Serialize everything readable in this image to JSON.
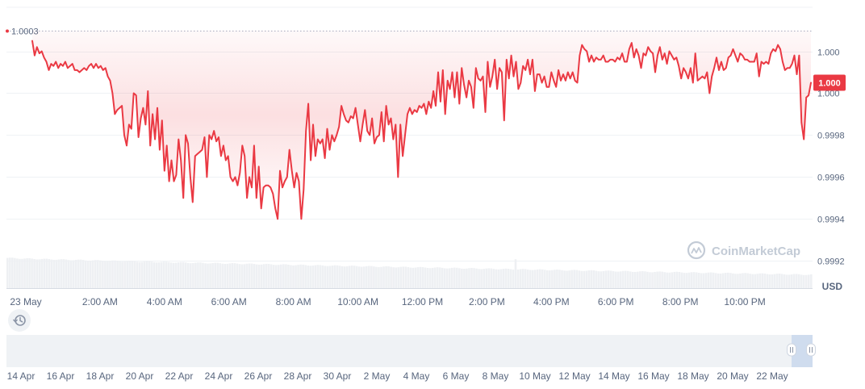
{
  "watermark": "CoinMarketCap",
  "currency_label": "USD",
  "open_price_label": "1.0003",
  "current_price_label": "1.000",
  "history_icon": "history-icon",
  "colors": {
    "line": "#ea3943",
    "price_tag_bg": "#ea3943",
    "grid": "#eff2f5",
    "axis_text": "#58667e",
    "volume": "#eef0f3",
    "navigator_bg": "#eff2f5",
    "navigator_selection": "#cfdcee",
    "watermark": "#c3cbd6"
  },
  "chart_data": {
    "type": "area",
    "title": "",
    "ylabel": "USD",
    "ylim": [
      0.99907,
      1.00041
    ],
    "y_ticks": [
      "1.000",
      "1.000",
      "0.9998",
      "0.9996",
      "0.9994",
      "0.9992"
    ],
    "y_tick_values": [
      1.0002,
      1.0,
      0.9998,
      0.9996,
      0.9994,
      0.9992
    ],
    "x_ticks": [
      "23 May",
      "2:00 AM",
      "4:00 AM",
      "6:00 AM",
      "8:00 AM",
      "10:00 AM",
      "12:00 PM",
      "2:00 PM",
      "4:00 PM",
      "6:00 PM",
      "8:00 PM",
      "10:00 PM"
    ],
    "x_tick_hours": [
      0.6,
      2.9,
      4.9,
      6.9,
      8.9,
      10.9,
      12.9,
      14.9,
      16.9,
      18.9,
      20.9,
      22.9
    ],
    "x_range_hours": [
      0,
      25
    ],
    "reference_line": 1.0003,
    "series": [
      {
        "values": [
          1.00025,
          1.00018,
          1.00022,
          1.00019,
          1.0002,
          1.00017,
          1.00015,
          1.00011,
          1.00014,
          1.00013,
          1.00015,
          1.00012,
          1.00014,
          1.00013,
          1.00015,
          1.00012,
          1.00013,
          1.00014,
          1.00011,
          1.00011,
          1.0001,
          1.00011,
          1.00012,
          1.00011,
          1.00013,
          1.00014,
          1.00012,
          1.00014,
          1.00012,
          1.00013,
          1.00011,
          1.00012,
          1.00008,
          1.00006,
          1.0,
          0.9999,
          0.99992,
          0.99993,
          0.99994,
          0.9998,
          0.99975,
          0.99985,
          0.99983,
          1.0,
          0.99999,
          0.99979,
          0.99988,
          0.99993,
          0.99985,
          1.00001,
          0.99975,
          0.9999,
          0.99978,
          0.99993,
          0.99973,
          0.99987,
          0.99963,
          0.99975,
          0.99958,
          0.99968,
          0.99958,
          0.99961,
          0.99978,
          0.99968,
          0.9995,
          0.9998,
          0.99976,
          0.9996,
          0.99948,
          0.9997,
          0.99971,
          0.99972,
          0.99973,
          0.99979,
          0.9996,
          0.9998,
          0.99978,
          0.99982,
          0.99977,
          0.99979,
          0.9997,
          0.99975,
          0.99968,
          0.9997,
          0.9996,
          0.99958,
          0.9996,
          0.99956,
          0.99962,
          0.99975,
          0.9997,
          0.9995,
          0.9996,
          0.99955,
          0.99975,
          0.9995,
          0.99965,
          0.99945,
          0.99955,
          0.99956,
          0.99956,
          0.99955,
          0.99952,
          0.99945,
          0.9994,
          0.99963,
          0.99955,
          0.99958,
          0.9996,
          0.99973,
          0.99963,
          0.99955,
          0.99962,
          0.99958,
          0.9994,
          0.99954,
          0.99982,
          0.99995,
          0.99968,
          0.99985,
          0.9997,
          0.99978,
          0.99976,
          0.99978,
          0.99969,
          0.99983,
          0.99973,
          0.9998,
          0.99977,
          0.9998,
          0.99984,
          0.99994,
          0.9999,
          0.99987,
          0.99986,
          0.99989,
          0.99988,
          0.99993,
          0.99985,
          0.99977,
          0.99985,
          0.99992,
          0.99982,
          0.9998,
          0.99988,
          0.99976,
          0.99979,
          0.9998,
          0.99991,
          0.99977,
          0.99994,
          0.99985,
          0.99988,
          0.99978,
          0.99985,
          0.9996,
          0.99985,
          0.9997,
          0.9998,
          0.9999,
          0.99993,
          0.9999,
          0.99992,
          0.99991,
          0.99994,
          0.99993,
          0.99995,
          0.9999,
          0.99996,
          0.99993,
          1.00001,
          0.99994,
          1.0001,
          0.99996,
          1.00011,
          0.9999,
          1.00006,
          1.00002,
          1.0001,
          0.99998,
          1.0001,
          0.99995,
          1.00012,
          1.00004,
          0.99998,
          1.00006,
          1.00003,
          0.99993,
          1.00012,
          1.00007,
          1.00006,
          1.00008,
          0.99991,
          1.00015,
          1.00003,
          1.00008,
          1.00016,
          1.00002,
          1.00012,
          1.0001,
          0.99987,
          1.00016,
          1.00007,
          1.00018,
          1.00008,
          1.00015,
          1.00002,
          1.00005,
          1.00013,
          1.00011,
          1.00016,
          1.00009,
          1.00016,
          1.00001,
          1.00009,
          1.00009,
          1.00005,
          1.00008,
          1.00003,
          1.00003,
          1.0001,
          1.00006,
          1.00003,
          1.00011,
          1.00006,
          1.00009,
          1.00006,
          1.0001,
          1.00007,
          1.0001,
          1.00006,
          1.00005,
          1.00018,
          1.00023,
          1.00021,
          1.0002,
          1.00015,
          1.00018,
          1.00015,
          1.00017,
          1.00016,
          1.00016,
          1.00018,
          1.00015,
          1.00015,
          1.00016,
          1.00016,
          1.00015,
          1.00017,
          1.00016,
          1.00019,
          1.00015,
          1.00015,
          1.00021,
          1.00024,
          1.00017,
          1.00021,
          1.00018,
          1.00012,
          1.00019,
          1.00018,
          1.00022,
          1.0002,
          1.00019,
          1.0001,
          1.00018,
          1.00022,
          1.00016,
          1.00019,
          1.00014,
          1.0002,
          1.00018,
          1.00016,
          1.00017,
          1.00013,
          1.00007,
          1.00012,
          1.0001,
          1.00007,
          1.00012,
          1.00005,
          1.00019,
          1.00006,
          1.00007,
          1.00008,
          1.00007,
          1.0001,
          1.0,
          1.00008,
          1.00012,
          1.00017,
          1.00011,
          1.00015,
          1.00011,
          1.00012,
          1.00017,
          1.00018,
          1.00021,
          1.00018,
          1.00015,
          1.00019,
          1.00018,
          1.00016,
          1.00016,
          1.00015,
          1.00015,
          1.00015,
          1.00019,
          1.00008,
          1.00015,
          1.00014,
          1.00015,
          1.00014,
          1.00019,
          1.00021,
          1.0002,
          1.00023,
          1.00021,
          1.00015,
          1.00011,
          1.00012,
          1.00012,
          1.00014,
          1.00018,
          1.00009,
          1.00018,
          0.99986,
          0.99978,
          0.99998,
          0.99999,
          1.00005
        ]
      }
    ],
    "volume": {
      "type": "bar",
      "start_ratio": 0.72,
      "end_ratio": 0.32
    },
    "navigator": {
      "x_ticks": [
        "14 Apr",
        "16 Apr",
        "18 Apr",
        "20 Apr",
        "22 Apr",
        "24 Apr",
        "26 Apr",
        "28 Apr",
        "30 Apr",
        "2 May",
        "4 May",
        "6 May",
        "8 May",
        "10 May",
        "12 May",
        "14 May",
        "16 May",
        "18 May",
        "20 May",
        "22 May"
      ],
      "selected_range": "23 May"
    }
  }
}
